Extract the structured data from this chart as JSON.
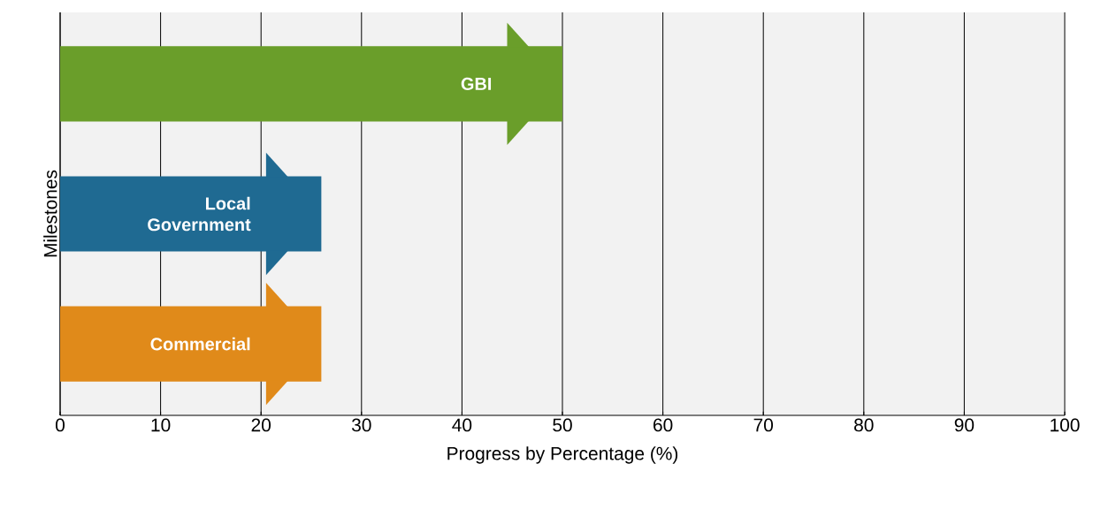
{
  "chart_data": {
    "type": "bar",
    "orientation": "horizontal",
    "categories": [
      "GBI",
      "Local Government",
      "Commercial"
    ],
    "values": [
      50,
      26,
      26
    ],
    "colors": [
      "#6a9e2a",
      "#1f6a92",
      "#e08a1a"
    ],
    "xlabel": "Progress by Percentage (%)",
    "ylabel": "Milestones",
    "xlim": [
      0,
      100
    ],
    "xticks": [
      0,
      10,
      20,
      30,
      40,
      50,
      60,
      70,
      80,
      90,
      100
    ],
    "grid": "x",
    "tick_labels": "x"
  }
}
